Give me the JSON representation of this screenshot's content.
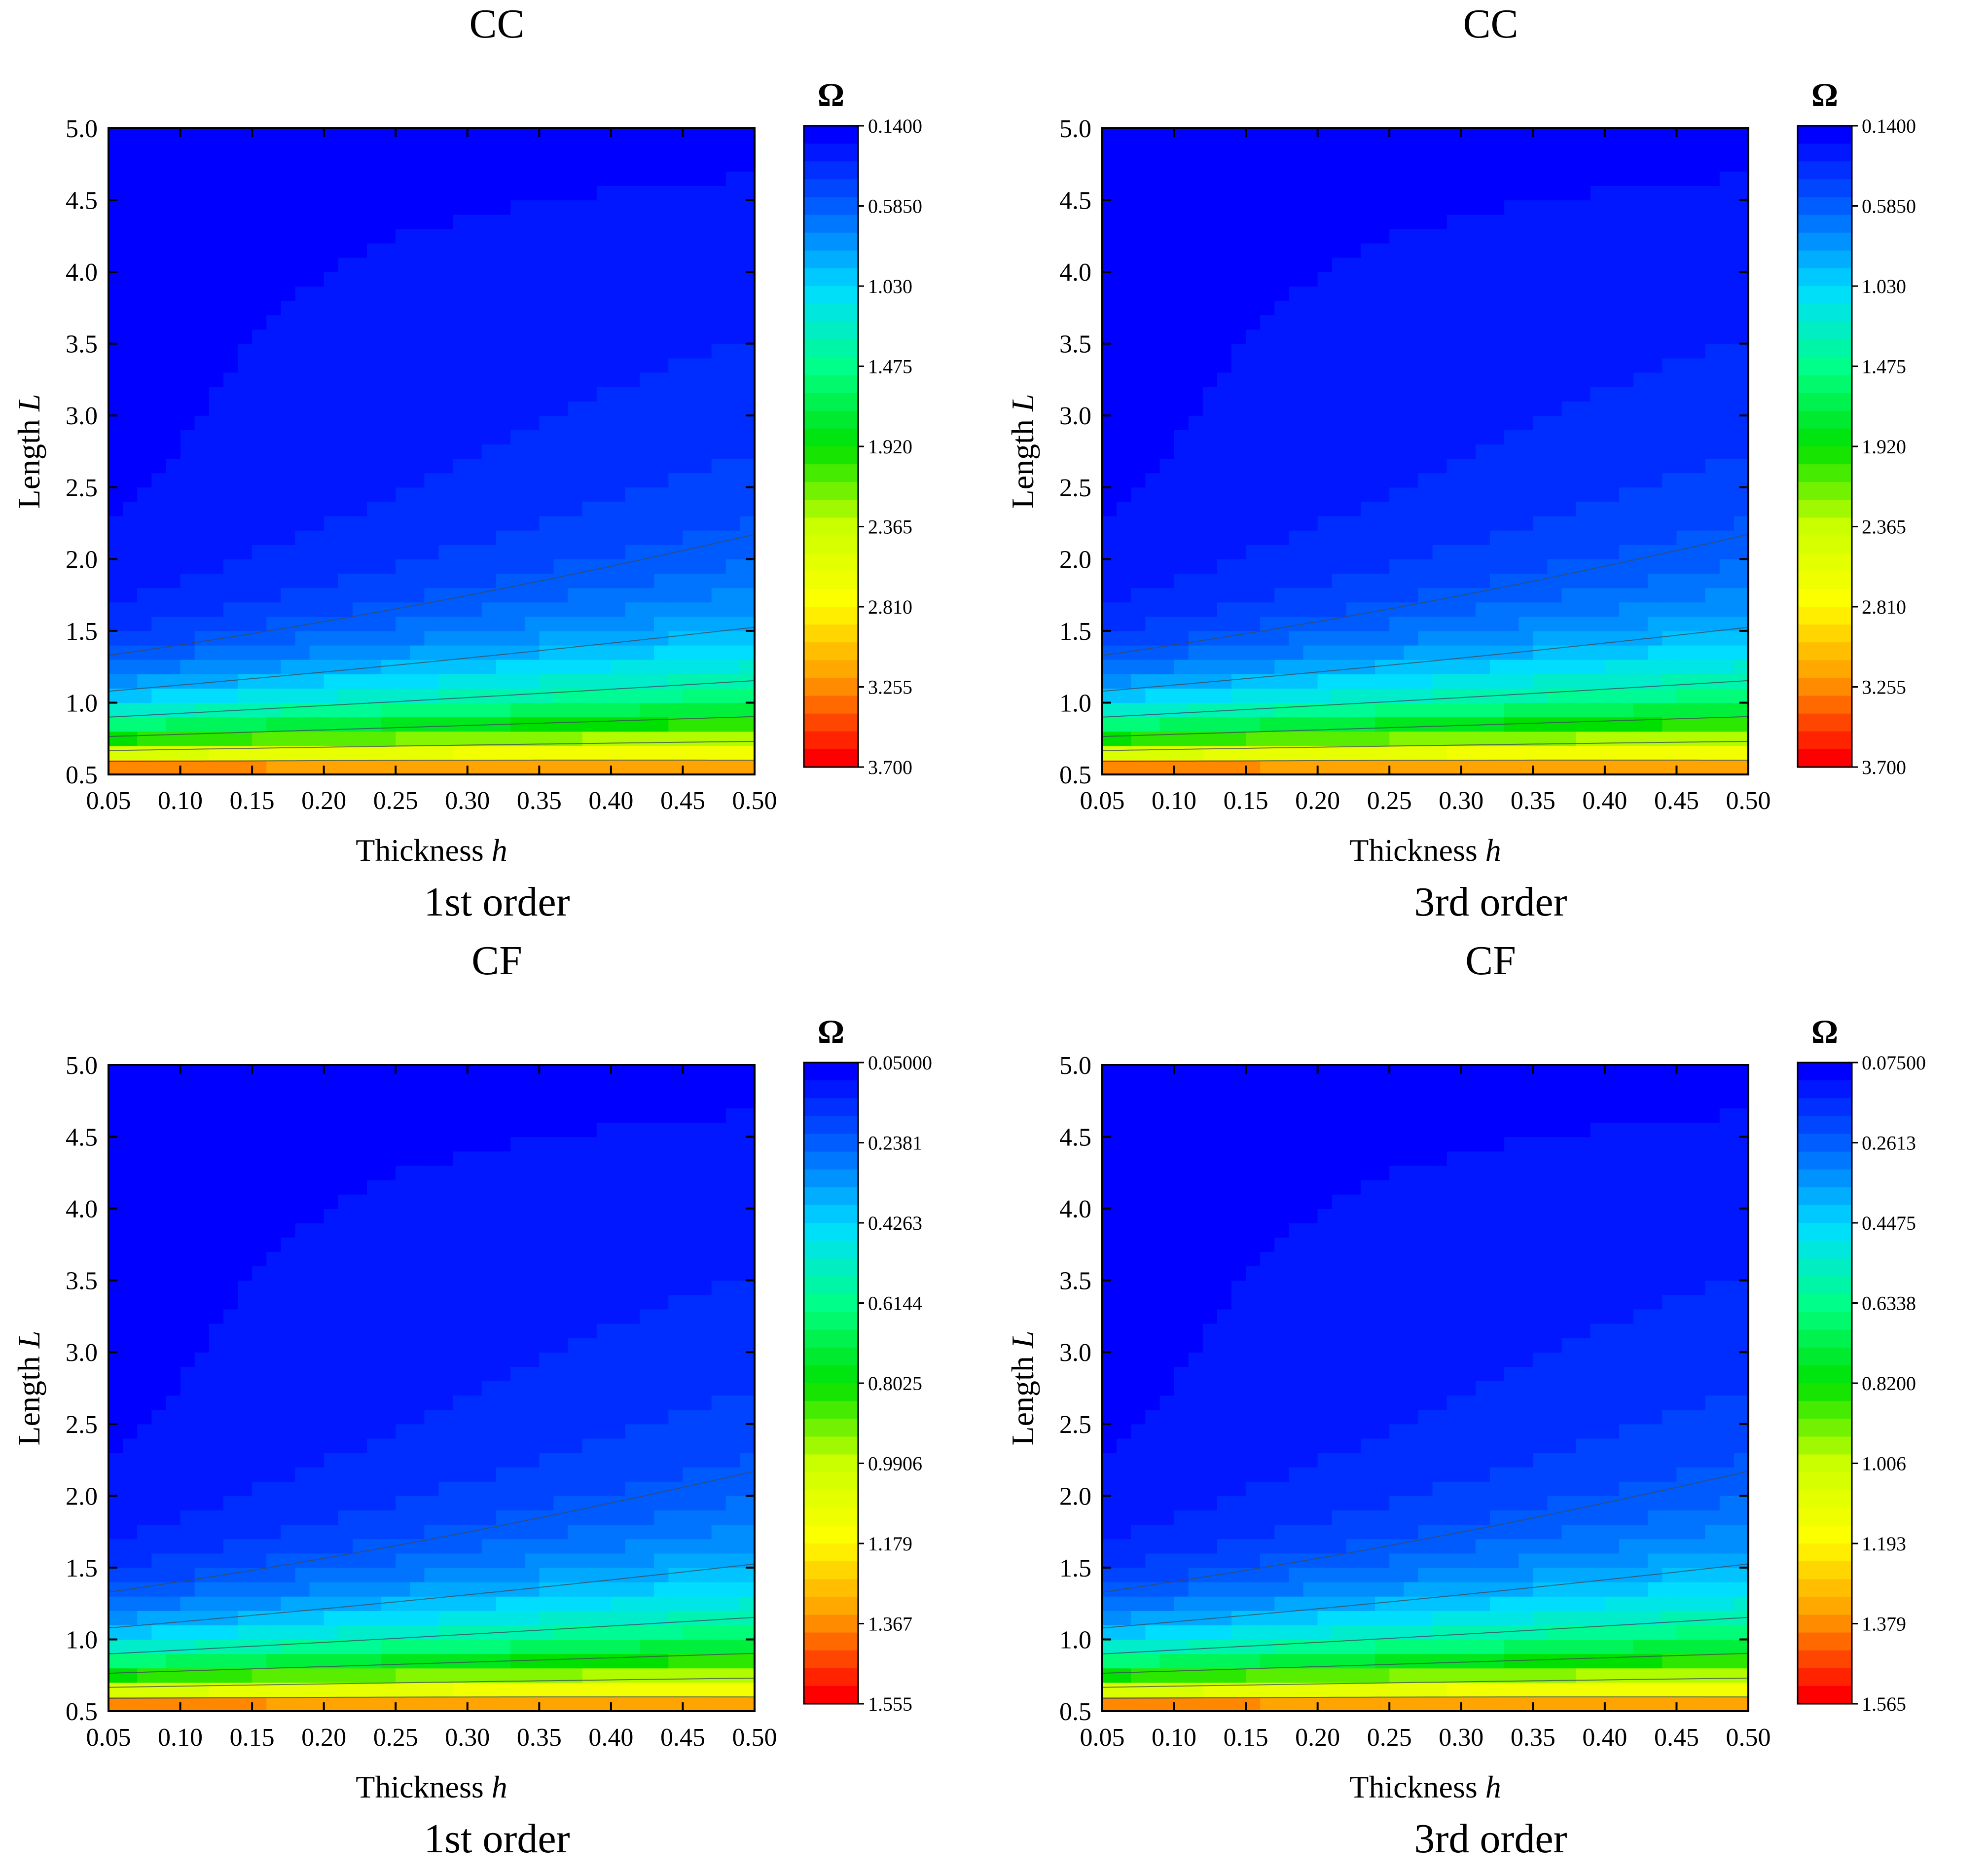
{
  "chart_data": [
    {
      "type": "heatmap",
      "title": "CC",
      "caption": "1st order",
      "xlabel": "Thickness",
      "xvar": "h",
      "ylabel": "Length",
      "yvar": "L",
      "x": [
        0.05,
        0.1,
        0.15,
        0.2,
        0.25,
        0.3,
        0.35,
        0.4,
        0.45,
        0.5
      ],
      "y": [
        0.5,
        1.0,
        1.5,
        2.0,
        2.5,
        3.0,
        3.5,
        4.0,
        4.5,
        5.0
      ],
      "xtick_labels": [
        "0.05",
        "0.10",
        "0.15",
        "0.20",
        "0.25",
        "0.30",
        "0.35",
        "0.40",
        "0.45",
        "0.50"
      ],
      "ytick_labels": [
        "0.5",
        "1.0",
        "1.5",
        "2.0",
        "2.5",
        "3.0",
        "3.5",
        "4.0",
        "4.5",
        "5.0"
      ],
      "xlim": [
        0.05,
        0.5
      ],
      "ylim": [
        0.5,
        5.0
      ],
      "colorbar": {
        "label": "Ω",
        "min": 0.14,
        "max": 3.7,
        "ticks": [
          "0.1400",
          "0.5850",
          "1.030",
          "1.475",
          "1.920",
          "2.365",
          "2.810",
          "3.255",
          "3.700"
        ]
      },
      "color_scale": [
        "#0000ff",
        "#0066ff",
        "#00ddff",
        "#00ff88",
        "#00e000",
        "#c8ff00",
        "#ffff00",
        "#ff9900",
        "#ff0000"
      ]
    },
    {
      "type": "heatmap",
      "title": "CC",
      "caption": "3rd order",
      "xlabel": "Thickness",
      "xvar": "h",
      "ylabel": "Length",
      "yvar": "L",
      "x": [
        0.05,
        0.1,
        0.15,
        0.2,
        0.25,
        0.3,
        0.35,
        0.4,
        0.45,
        0.5
      ],
      "y": [
        0.5,
        1.0,
        1.5,
        2.0,
        2.5,
        3.0,
        3.5,
        4.0,
        4.5,
        5.0
      ],
      "xtick_labels": [
        "0.05",
        "0.10",
        "0.15",
        "0.20",
        "0.25",
        "0.30",
        "0.35",
        "0.40",
        "0.45",
        "0.50"
      ],
      "ytick_labels": [
        "0.5",
        "1.0",
        "1.5",
        "2.0",
        "2.5",
        "3.0",
        "3.5",
        "4.0",
        "4.5",
        "5.0"
      ],
      "xlim": [
        0.05,
        0.5
      ],
      "ylim": [
        0.5,
        5.0
      ],
      "colorbar": {
        "label": "Ω",
        "min": 0.14,
        "max": 3.7,
        "ticks": [
          "0.1400",
          "0.5850",
          "1.030",
          "1.475",
          "1.920",
          "2.365",
          "2.810",
          "3.255",
          "3.700"
        ]
      },
      "color_scale": [
        "#0000ff",
        "#0066ff",
        "#00ddff",
        "#00ff88",
        "#00e000",
        "#c8ff00",
        "#ffff00",
        "#ff9900",
        "#ff0000"
      ]
    },
    {
      "type": "heatmap",
      "title": "CF",
      "caption": "1st order",
      "xlabel": "Thickness",
      "xvar": "h",
      "ylabel": "Length",
      "yvar": "L",
      "x": [
        0.05,
        0.1,
        0.15,
        0.2,
        0.25,
        0.3,
        0.35,
        0.4,
        0.45,
        0.5
      ],
      "y": [
        0.5,
        1.0,
        1.5,
        2.0,
        2.5,
        3.0,
        3.5,
        4.0,
        4.5,
        5.0
      ],
      "xtick_labels": [
        "0.05",
        "0.10",
        "0.15",
        "0.20",
        "0.25",
        "0.30",
        "0.35",
        "0.40",
        "0.45",
        "0.50"
      ],
      "ytick_labels": [
        "0.5",
        "1.0",
        "1.5",
        "2.0",
        "2.5",
        "3.0",
        "3.5",
        "4.0",
        "4.5",
        "5.0"
      ],
      "xlim": [
        0.05,
        0.5
      ],
      "ylim": [
        0.5,
        5.0
      ],
      "colorbar": {
        "label": "Ω",
        "min": 0.05,
        "max": 1.555,
        "ticks": [
          "0.05000",
          "0.2381",
          "0.4263",
          "0.6144",
          "0.8025",
          "0.9906",
          "1.179",
          "1.367",
          "1.555"
        ]
      },
      "color_scale": [
        "#0000ff",
        "#0066ff",
        "#00ddff",
        "#00ff88",
        "#00e000",
        "#c8ff00",
        "#ffff00",
        "#ff9900",
        "#ff0000"
      ]
    },
    {
      "type": "heatmap",
      "title": "CF",
      "caption": "3rd order",
      "xlabel": "Thickness",
      "xvar": "h",
      "ylabel": "Length",
      "yvar": "L",
      "x": [
        0.05,
        0.1,
        0.15,
        0.2,
        0.25,
        0.3,
        0.35,
        0.4,
        0.45,
        0.5
      ],
      "y": [
        0.5,
        1.0,
        1.5,
        2.0,
        2.5,
        3.0,
        3.5,
        4.0,
        4.5,
        5.0
      ],
      "xtick_labels": [
        "0.05",
        "0.10",
        "0.15",
        "0.20",
        "0.25",
        "0.30",
        "0.35",
        "0.40",
        "0.45",
        "0.50"
      ],
      "ytick_labels": [
        "0.5",
        "1.0",
        "1.5",
        "2.0",
        "2.5",
        "3.0",
        "3.5",
        "4.0",
        "4.5",
        "5.0"
      ],
      "xlim": [
        0.05,
        0.5
      ],
      "ylim": [
        0.5,
        5.0
      ],
      "colorbar": {
        "label": "Ω",
        "min": 0.075,
        "max": 1.565,
        "ticks": [
          "0.07500",
          "0.2613",
          "0.4475",
          "0.6338",
          "0.8200",
          "1.006",
          "1.193",
          "1.379",
          "1.565"
        ]
      },
      "color_scale": [
        "#0000ff",
        "#0066ff",
        "#00ddff",
        "#00ff88",
        "#00e000",
        "#c8ff00",
        "#ffff00",
        "#ff9900",
        "#ff0000"
      ]
    }
  ]
}
